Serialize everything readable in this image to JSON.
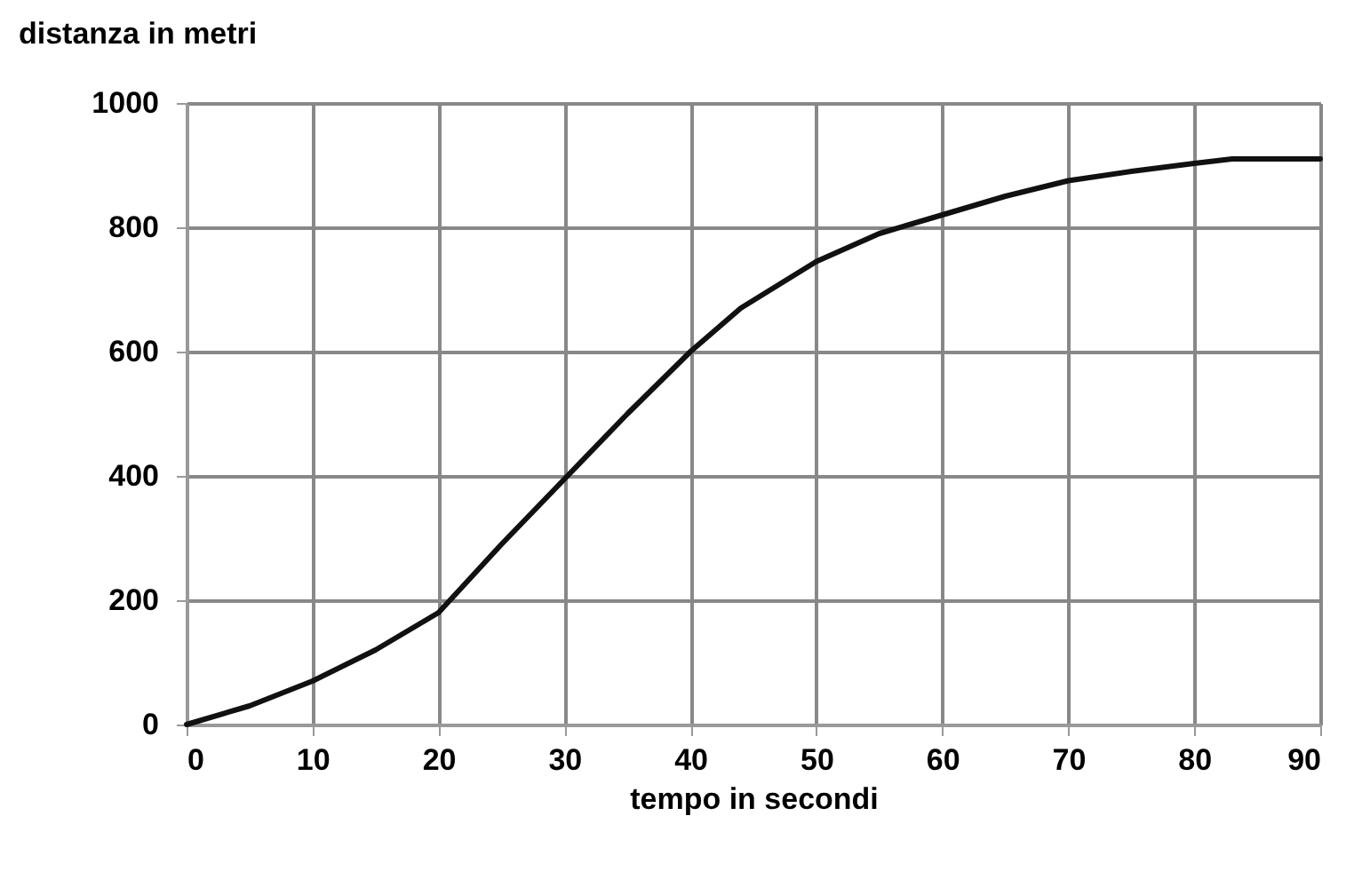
{
  "chart_data": {
    "type": "line",
    "xlabel": "tempo in secondi",
    "ylabel": "distanza in metri",
    "x": [
      0,
      5,
      10,
      15,
      20,
      25,
      30,
      35,
      40,
      44,
      50,
      55,
      60,
      65,
      70,
      75,
      80,
      83,
      90
    ],
    "series": [
      {
        "color": "#111111",
        "values": [
          0,
          30,
          70,
          120,
          180,
          290,
          395,
          500,
          600,
          670,
          745,
          790,
          820,
          850,
          875,
          890,
          903,
          910,
          910
        ]
      }
    ],
    "xlim": [
      0,
      90
    ],
    "xticks": [
      0,
      10,
      20,
      30,
      40,
      50,
      60,
      70,
      80,
      90
    ],
    "ylim": [
      0,
      1000
    ],
    "yticks": [
      0,
      200,
      400,
      600,
      800,
      1000
    ],
    "grid": true,
    "marker": "none",
    "line_style": "solid"
  }
}
